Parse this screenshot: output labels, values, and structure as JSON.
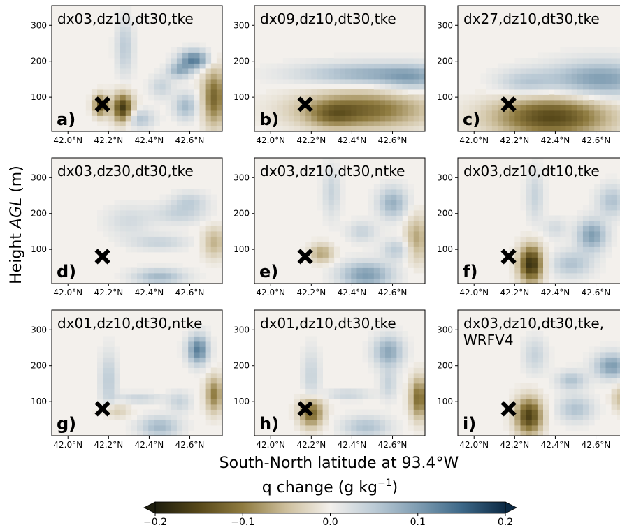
{
  "chart_data": [
    {
      "type": "heatmap",
      "panel_label": "a)",
      "title": "dx03,dz10,dt30,tke",
      "x_ticks": [
        "42.0°N",
        "42.2°N",
        "42.4°N",
        "42.6°N"
      ],
      "y_ticks": [
        "100",
        "200",
        "300"
      ],
      "xlim": [
        41.92,
        42.76
      ],
      "ylim": [
        5,
        355
      ],
      "marker": {
        "x": 42.17,
        "y": 80
      },
      "blobs": [
        [
          42.27,
          70,
          0.035,
          28,
          -0.17
        ],
        [
          42.16,
          78,
          0.025,
          20,
          -0.14
        ],
        [
          42.72,
          100,
          0.04,
          55,
          -0.12
        ],
        [
          42.62,
          205,
          0.05,
          18,
          0.13
        ],
        [
          42.55,
          175,
          0.04,
          15,
          0.08
        ],
        [
          42.35,
          40,
          0.05,
          18,
          0.06
        ],
        [
          42.58,
          75,
          0.04,
          25,
          0.07
        ],
        [
          42.28,
          240,
          0.03,
          55,
          0.05
        ],
        [
          42.46,
          130,
          0.04,
          22,
          0.04
        ]
      ]
    },
    {
      "type": "heatmap",
      "panel_label": "b)",
      "title": "dx09,dz10,dt30,tke",
      "x_ticks": [
        "42.0°N",
        "42.2°N",
        "42.4°N",
        "42.6°N"
      ],
      "y_ticks": [
        "100",
        "200",
        "300"
      ],
      "xlim": [
        41.92,
        42.76
      ],
      "ylim": [
        5,
        355
      ],
      "marker": {
        "x": 42.17,
        "y": 80
      },
      "blobs": [
        [
          42.45,
          65,
          0.22,
          35,
          -0.12
        ],
        [
          42.3,
          50,
          0.08,
          25,
          -0.05
        ],
        [
          42.5,
          165,
          0.25,
          22,
          0.08
        ],
        [
          42.7,
          150,
          0.1,
          25,
          0.05
        ]
      ]
    },
    {
      "type": "heatmap",
      "panel_label": "c)",
      "title": "dx27,dz10,dt30,tke",
      "x_ticks": [
        "42.0°N",
        "42.2°N",
        "42.4°N",
        "42.6°N"
      ],
      "y_ticks": [
        "100",
        "200",
        "300"
      ],
      "xlim": [
        41.92,
        42.76
      ],
      "ylim": [
        5,
        355
      ],
      "marker": {
        "x": 42.17,
        "y": 80
      },
      "blobs": [
        [
          42.38,
          45,
          0.2,
          40,
          -0.15
        ],
        [
          42.62,
          150,
          0.18,
          35,
          0.1
        ],
        [
          42.25,
          140,
          0.1,
          25,
          0.05
        ]
      ]
    },
    {
      "type": "heatmap",
      "panel_label": "d)",
      "title": "dx03,dz30,dt30,tke",
      "x_ticks": [
        "42.0°N",
        "42.2°N",
        "42.4°N",
        "42.6°N"
      ],
      "y_ticks": [
        "100",
        "200",
        "300"
      ],
      "xlim": [
        41.92,
        42.76
      ],
      "ylim": [
        5,
        355
      ],
      "marker": {
        "x": 42.17,
        "y": 80
      },
      "blobs": [
        [
          42.45,
          25,
          0.09,
          15,
          0.07
        ],
        [
          42.72,
          120,
          0.04,
          30,
          -0.06
        ],
        [
          42.45,
          120,
          0.1,
          15,
          0.04
        ],
        [
          42.55,
          200,
          0.09,
          20,
          0.04
        ],
        [
          42.6,
          235,
          0.06,
          18,
          0.04
        ],
        [
          42.3,
          180,
          0.08,
          30,
          0.03
        ]
      ]
    },
    {
      "type": "heatmap",
      "panel_label": "e)",
      "title": "dx03,dz10,dt30,ntke",
      "x_ticks": [
        "42.0°N",
        "42.2°N",
        "42.4°N",
        "42.6°N"
      ],
      "y_ticks": [
        "100",
        "200",
        "300"
      ],
      "xlim": [
        41.92,
        42.76
      ],
      "ylim": [
        5,
        355
      ],
      "marker": {
        "x": 42.17,
        "y": 80
      },
      "blobs": [
        [
          42.47,
          30,
          0.09,
          25,
          0.1
        ],
        [
          42.25,
          90,
          0.04,
          18,
          -0.07
        ],
        [
          42.72,
          130,
          0.04,
          45,
          -0.07
        ],
        [
          42.6,
          230,
          0.05,
          30,
          0.08
        ],
        [
          42.3,
          260,
          0.03,
          50,
          0.04
        ],
        [
          42.45,
          150,
          0.05,
          20,
          0.04
        ],
        [
          42.62,
          100,
          0.05,
          20,
          0.05
        ]
      ]
    },
    {
      "type": "heatmap",
      "panel_label": "f)",
      "title": "dx03,dz10,dt10,tke",
      "x_ticks": [
        "42.0°N",
        "42.2°N",
        "42.4°N",
        "42.6°N"
      ],
      "y_ticks": [
        "100",
        "200",
        "300"
      ],
      "xlim": [
        41.92,
        42.76
      ],
      "ylim": [
        5,
        355
      ],
      "marker": {
        "x": 42.17,
        "y": 80
      },
      "blobs": [
        [
          42.28,
          60,
          0.04,
          35,
          -0.18
        ],
        [
          42.58,
          140,
          0.05,
          30,
          0.1
        ],
        [
          42.48,
          60,
          0.07,
          25,
          0.06
        ],
        [
          42.68,
          235,
          0.05,
          30,
          0.06
        ],
        [
          42.3,
          250,
          0.03,
          50,
          0.04
        ],
        [
          42.4,
          160,
          0.04,
          20,
          0.03
        ]
      ]
    },
    {
      "type": "heatmap",
      "panel_label": "g)",
      "title": "dx01,dz10,dt30,ntke",
      "x_ticks": [
        "42.0°N",
        "42.2°N",
        "42.4°N",
        "42.6°N"
      ],
      "y_ticks": [
        "100",
        "200",
        "300"
      ],
      "xlim": [
        41.92,
        42.76
      ],
      "ylim": [
        5,
        355
      ],
      "marker": {
        "x": 42.17,
        "y": 80
      },
      "blobs": [
        [
          42.64,
          245,
          0.035,
          28,
          0.13
        ],
        [
          42.72,
          120,
          0.03,
          35,
          -0.1
        ],
        [
          42.45,
          30,
          0.07,
          20,
          0.07
        ],
        [
          42.2,
          160,
          0.03,
          55,
          0.05
        ],
        [
          42.35,
          110,
          0.08,
          10,
          0.04
        ],
        [
          42.55,
          100,
          0.04,
          20,
          0.04
        ],
        [
          42.23,
          75,
          0.05,
          15,
          -0.04
        ]
      ]
    },
    {
      "type": "heatmap",
      "panel_label": "h)",
      "title": "dx01,dz10,dt30,tke",
      "x_ticks": [
        "42.0°N",
        "42.2°N",
        "42.4°N",
        "42.6°N"
      ],
      "y_ticks": [
        "100",
        "200",
        "300"
      ],
      "xlim": [
        41.92,
        42.76
      ],
      "ylim": [
        5,
        355
      ],
      "marker": {
        "x": 42.17,
        "y": 80
      },
      "blobs": [
        [
          42.2,
          70,
          0.04,
          28,
          -0.13
        ],
        [
          42.73,
          110,
          0.03,
          40,
          -0.12
        ],
        [
          42.58,
          240,
          0.05,
          30,
          0.09
        ],
        [
          42.47,
          30,
          0.08,
          20,
          0.06
        ],
        [
          42.2,
          170,
          0.03,
          55,
          0.04
        ],
        [
          42.38,
          120,
          0.08,
          10,
          0.04
        ],
        [
          42.58,
          150,
          0.03,
          30,
          0.04
        ]
      ]
    },
    {
      "type": "heatmap",
      "panel_label": "i)",
      "title": "dx03,dz10,dt30,tke,\nWRFV4",
      "x_ticks": [
        "42.0°N",
        "42.2°N",
        "42.4°N",
        "42.6°N"
      ],
      "y_ticks": [
        "100",
        "200",
        "300"
      ],
      "xlim": [
        41.92,
        42.76
      ],
      "ylim": [
        5,
        355
      ],
      "marker": {
        "x": 42.17,
        "y": 80
      },
      "blobs": [
        [
          42.27,
          60,
          0.045,
          35,
          -0.16
        ],
        [
          42.68,
          200,
          0.06,
          25,
          0.1
        ],
        [
          42.48,
          160,
          0.05,
          18,
          0.06
        ],
        [
          42.5,
          80,
          0.06,
          25,
          0.06
        ],
        [
          42.3,
          230,
          0.04,
          35,
          0.04
        ],
        [
          42.72,
          110,
          0.03,
          25,
          -0.05
        ]
      ]
    }
  ],
  "xlabel": "South-North latitude at 93.4°W",
  "ylabel": "Height AGL (m)",
  "colorbar": {
    "title": "q change (g kg⁻¹)",
    "ticks": [
      "−0.2",
      "−0.1",
      "0.0",
      "0.1",
      "0.2"
    ],
    "vmin": -0.2,
    "vmax": 0.2,
    "colors": [
      "#1e1e0e",
      "#574819",
      "#8f7b40",
      "#cdbf9d",
      "#f3f0ec",
      "#bccbd6",
      "#7f9db2",
      "#3d6888",
      "#0c2a44"
    ]
  }
}
